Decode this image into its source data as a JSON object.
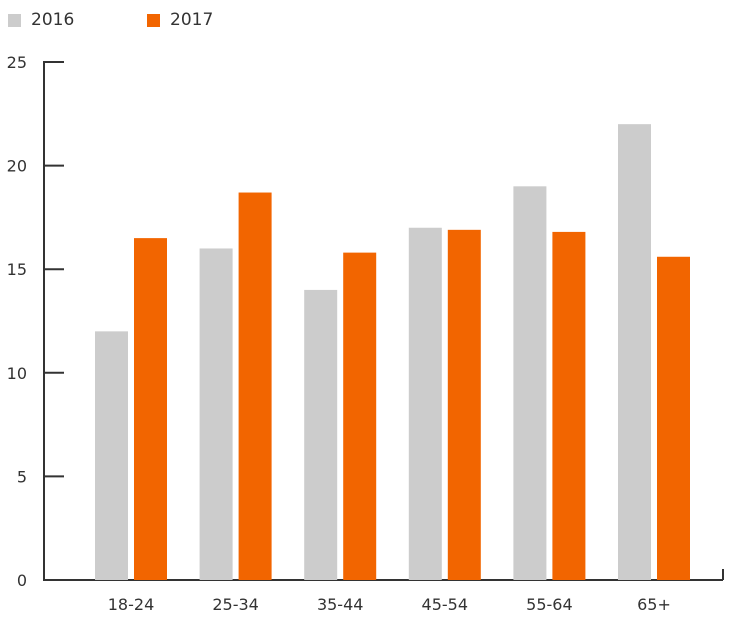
{
  "chart_data": {
    "type": "bar",
    "categories": [
      "18-24",
      "25-34",
      "35-44",
      "45-54",
      "55-64",
      "65+"
    ],
    "series": [
      {
        "name": "2016",
        "values": [
          12,
          16,
          14,
          17,
          19,
          22
        ],
        "color": "#cccccc"
      },
      {
        "name": "2017",
        "values": [
          16.5,
          18.7,
          15.8,
          16.9,
          16.8,
          15.6
        ],
        "color": "#f26500"
      }
    ],
    "ylim": [
      0,
      25
    ],
    "yticks": [
      "0",
      "5",
      "10",
      "15",
      "20",
      "25"
    ],
    "xlabel": "",
    "ylabel": "",
    "grid": false,
    "legend_position": "top-left",
    "axis_color": "#333333"
  }
}
